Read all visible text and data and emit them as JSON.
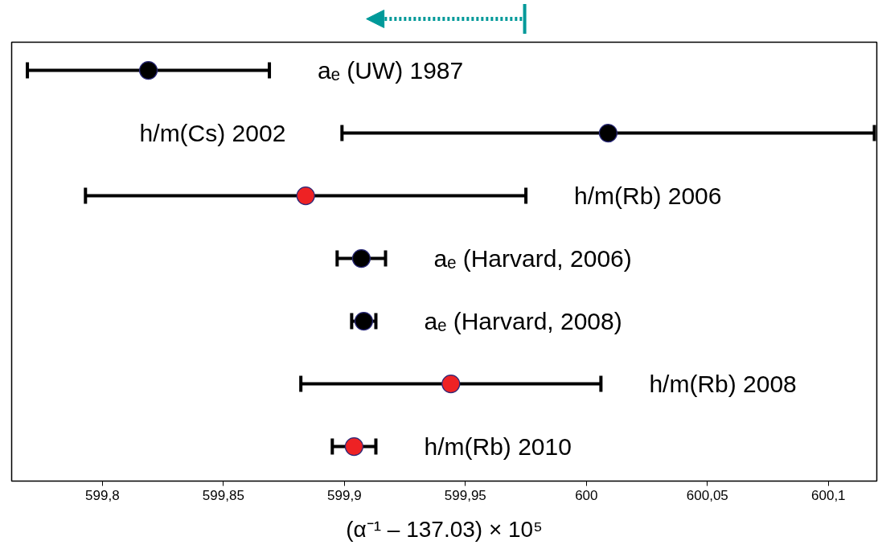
{
  "chart_data": {
    "type": "scatter",
    "orientation": "horizontal",
    "xlabel": "(α⁻¹ – 137.03) × 10⁵",
    "categories": [
      "aₑ (UW) 1987",
      "h/m(Cs) 2002",
      "h/m(Rb) 2006",
      "aₑ (Harvard, 2006)",
      "aₑ (Harvard, 2008)",
      "h/m(Rb) 2008",
      "h/m(Rb) 2010"
    ],
    "values": [
      599.819,
      600.009,
      599.884,
      599.907,
      599.908,
      599.944,
      599.904
    ],
    "errors": [
      0.05,
      0.11,
      0.091,
      0.01,
      0.005,
      0.062,
      0.009
    ],
    "colors": [
      "#000000",
      "#000000",
      "#ee2224",
      "#000000",
      "#000000",
      "#ee2224",
      "#ee2224"
    ],
    "xlim": [
      599.7625,
      600.12
    ],
    "xticks": [
      {
        "value": 599.8,
        "label": "599,8"
      },
      {
        "value": 599.85,
        "label": "599,85"
      },
      {
        "value": 599.9,
        "label": "599,9"
      },
      {
        "value": 599.95,
        "label": "599,95"
      },
      {
        "value": 600,
        "label": "600"
      },
      {
        "value": 600.05,
        "label": "600,05"
      },
      {
        "value": 600.1,
        "label": "600,1"
      }
    ],
    "tick_labels": "x",
    "grid": false,
    "marker": "circle"
  }
}
